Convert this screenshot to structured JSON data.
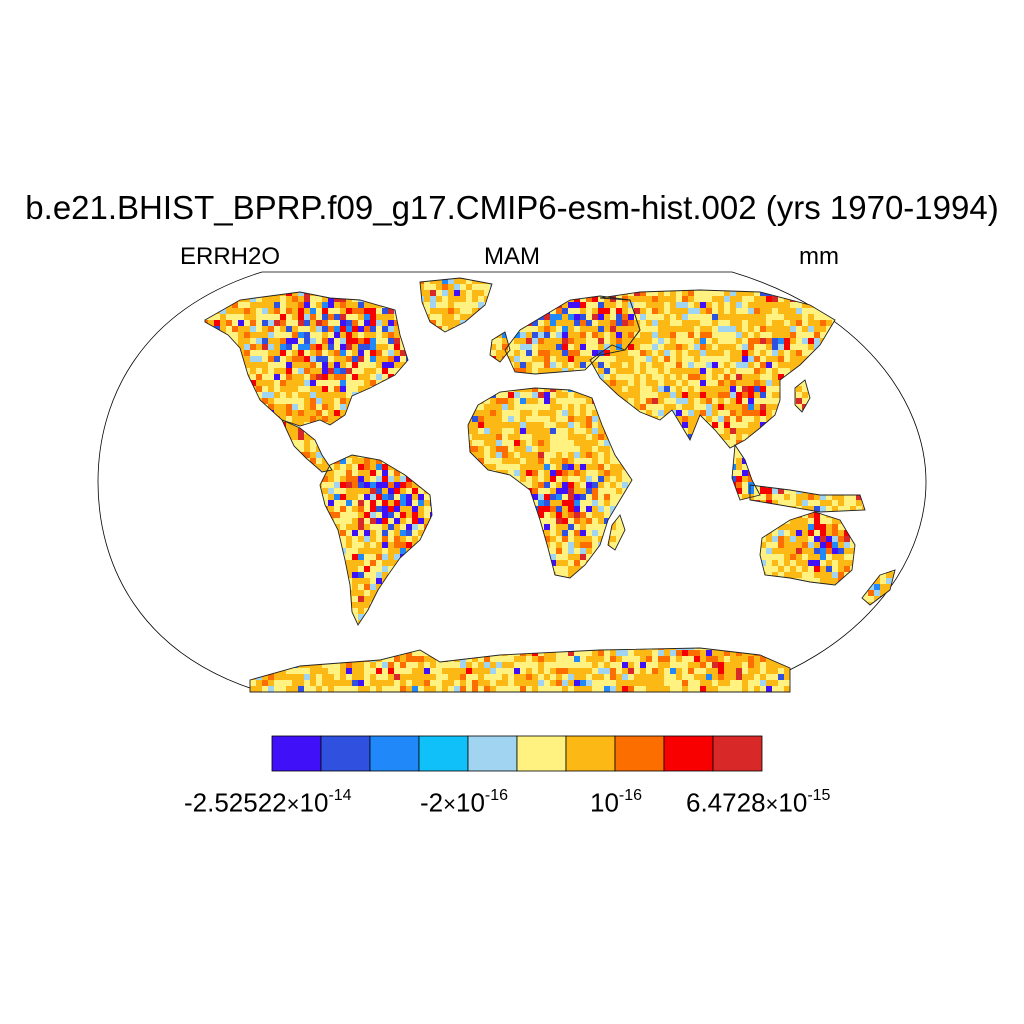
{
  "header": {
    "title": "b.e21.BHIST_BPRP.f09_g17.CMIP6-esm-hist.002 (yrs 1970-1994)",
    "variable": "ERRH2O",
    "season": "MAM",
    "units": "mm"
  },
  "colorbar": {
    "colors": [
      "#4010f8",
      "#3050e0",
      "#2088f8",
      "#10c0f8",
      "#a0d4f0",
      "#fff280",
      "#fcb814",
      "#fc6e00",
      "#f80000",
      "#d82828"
    ],
    "labels": {
      "first": {
        "mantissa": "-2.52522",
        "times": "×",
        "base": "10",
        "exponent": "-14"
      },
      "second": {
        "mantissa": "-2",
        "times": "×",
        "base": "10",
        "exponent": "-16"
      },
      "third": {
        "base": "10",
        "exponent": "-16"
      },
      "fourth": {
        "mantissa": "6.4728",
        "times": "×",
        "base": "10",
        "exponent": "-15"
      }
    }
  },
  "map": {
    "projection": "Robinson",
    "land_fill_dominant": "#fcc21c",
    "ocean_fill": "#ffffff"
  }
}
